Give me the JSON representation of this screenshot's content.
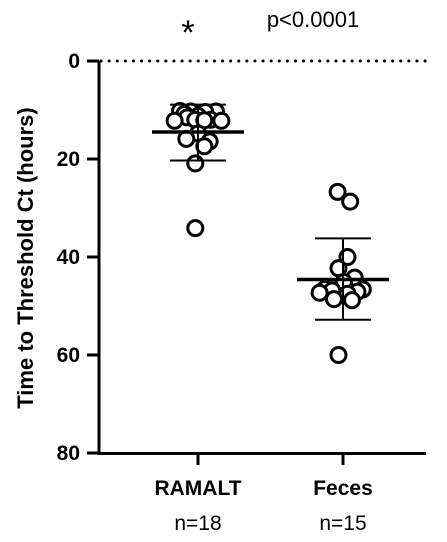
{
  "chart_data": {
    "type": "scatter",
    "ylabel": "Time to Threshold Ct (hours)",
    "ylim": [
      0,
      80
    ],
    "y_inverted": true,
    "yticks": [
      0,
      20,
      40,
      60,
      80
    ],
    "reference_line_y": 0,
    "categories": [
      "RAMALT",
      "Feces"
    ],
    "sample_sizes": [
      "n=18",
      "n=15"
    ],
    "annotations": {
      "significance": "*",
      "p_value": "p<0.0001"
    },
    "groups": [
      {
        "category": "RAMALT",
        "n_label": "n=18",
        "mean": 14.5,
        "sd_low": 8.9,
        "sd_high": 20.3,
        "values": [
          10.2,
          10.3,
          10.3,
          10.4,
          10.8,
          11.2,
          11.5,
          12.0,
          12.0,
          12.1,
          12.2,
          12.2,
          14.8,
          15.9,
          16.4,
          17.4,
          20.9,
          34.1
        ],
        "x_offsets": [
          -0.4,
          0.4,
          -0.16,
          0.16,
          -0.3,
          0.0,
          -0.24,
          0.28,
          -0.06,
          0.14,
          -0.52,
          0.52,
          0.0,
          -0.26,
          0.26,
          0.14,
          -0.06,
          -0.06
        ]
      },
      {
        "category": "Feces",
        "n_label": "n=15",
        "mean": 44.6,
        "sd_low": 36.2,
        "sd_high": 52.8,
        "values": [
          26.7,
          28.7,
          40.0,
          42.3,
          44.2,
          45.1,
          46.5,
          46.6,
          46.8,
          47.1,
          47.3,
          47.5,
          48.6,
          48.8,
          60.0
        ],
        "x_offsets": [
          -0.12,
          0.16,
          0.1,
          -0.1,
          0.26,
          0.02,
          -0.4,
          0.44,
          -0.24,
          0.32,
          -0.52,
          0.1,
          -0.2,
          0.2,
          -0.1
        ]
      }
    ]
  }
}
